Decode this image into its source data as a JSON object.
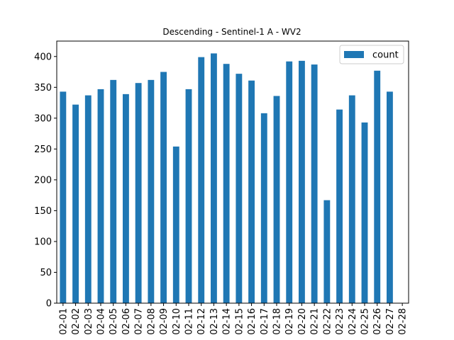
{
  "chart_data": {
    "type": "bar",
    "title": "Descending - Sentinel-1 A - WV2",
    "xlabel": "",
    "ylabel": "",
    "categories": [
      "02-01",
      "02-02",
      "02-03",
      "02-04",
      "02-05",
      "02-06",
      "02-07",
      "02-08",
      "02-09",
      "02-10",
      "02-11",
      "02-12",
      "02-13",
      "02-14",
      "02-15",
      "02-16",
      "02-17",
      "02-18",
      "02-19",
      "02-20",
      "02-21",
      "02-22",
      "02-23",
      "02-24",
      "02-25",
      "02-26",
      "02-27",
      "02-28"
    ],
    "series": [
      {
        "name": "count",
        "color": "#1f77b4",
        "values": [
          343,
          322,
          337,
          347,
          362,
          339,
          357,
          362,
          375,
          254,
          347,
          399,
          405,
          388,
          372,
          361,
          308,
          336,
          392,
          393,
          387,
          167,
          314,
          337,
          293,
          377,
          343,
          0
        ]
      }
    ],
    "yticks": [
      0,
      50,
      100,
      150,
      200,
      250,
      300,
      350,
      400
    ],
    "ylim": [
      0,
      425
    ],
    "grid": false,
    "legend_position": "top-right"
  }
}
